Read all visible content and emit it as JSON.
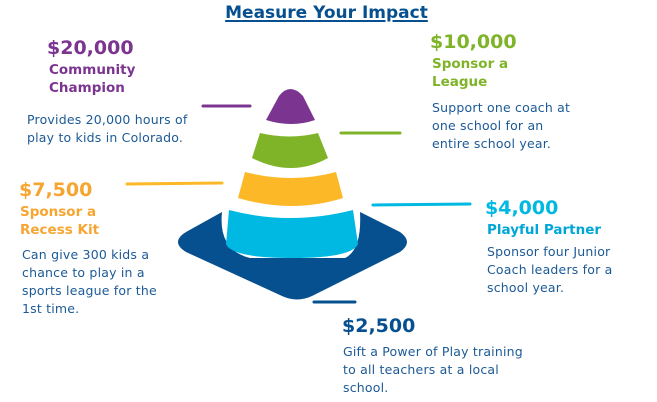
{
  "title": "Measure Your Impact",
  "colors": {
    "purple": "#7b3590",
    "green": "#7fb428",
    "yellow": "#fdb827",
    "cyan": "#00b9e3",
    "navy": "#06508f",
    "text": "#1c5a96"
  },
  "levels": [
    {
      "amount": "$20,000",
      "name_line1": "Community",
      "name_line2": "Champion",
      "desc_line1": "Provides 20,000 hours of",
      "desc_line2": "play to kids in Colorado."
    },
    {
      "amount": "$10,000",
      "name_line1": "Sponsor a",
      "name_line2": "League",
      "desc_line1": "Support one coach at",
      "desc_line2": "one school for an",
      "desc_line3": "entire school year."
    },
    {
      "amount": "$7,500",
      "name_line1": "Sponsor a",
      "name_line2": "Recess Kit",
      "desc_line1": "Can give 300 kids a",
      "desc_line2": "chance to play in a",
      "desc_line3": "sports league for the",
      "desc_line4": "1st time."
    },
    {
      "amount": "$4,000",
      "name_line1": "Playful Partner",
      "desc_line1": "Sponsor four Junior",
      "desc_line2": "Coach leaders for a",
      "desc_line3": "school year."
    },
    {
      "amount": "$2,500",
      "desc_line1": "Gift a Power of Play training",
      "desc_line2": "to all teachers at a local",
      "desc_line3": "school."
    }
  ]
}
